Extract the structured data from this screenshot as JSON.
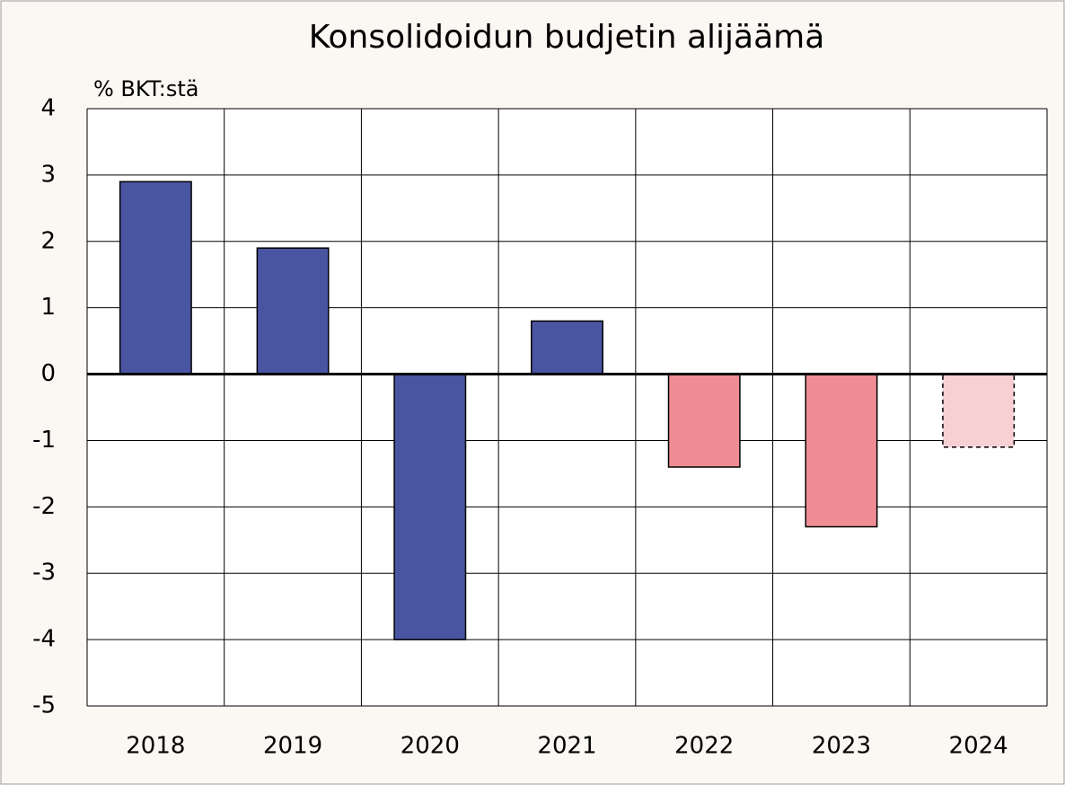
{
  "chart_data": {
    "type": "bar",
    "title": "Konsolidoidun budjetin alijäämä",
    "y_label": "% BKT:stä",
    "categories": [
      "2018",
      "2019",
      "2020",
      "2021",
      "2022",
      "2023",
      "2024"
    ],
    "values": [
      2.9,
      1.9,
      -4.0,
      0.8,
      -1.4,
      -2.3,
      -1.1
    ],
    "colors": [
      "#4a55a2",
      "#4a55a2",
      "#4a55a2",
      "#4a55a2",
      "#f08c94",
      "#f08c94",
      "#f8d0d3"
    ],
    "border_styles": [
      "solid",
      "solid",
      "solid",
      "solid",
      "solid",
      "solid",
      "dashed"
    ],
    "ylim": [
      -5,
      4
    ],
    "yticks": [
      -5,
      -4,
      -3,
      -2,
      -1,
      0,
      1,
      2,
      3,
      4
    ],
    "grid": true
  }
}
